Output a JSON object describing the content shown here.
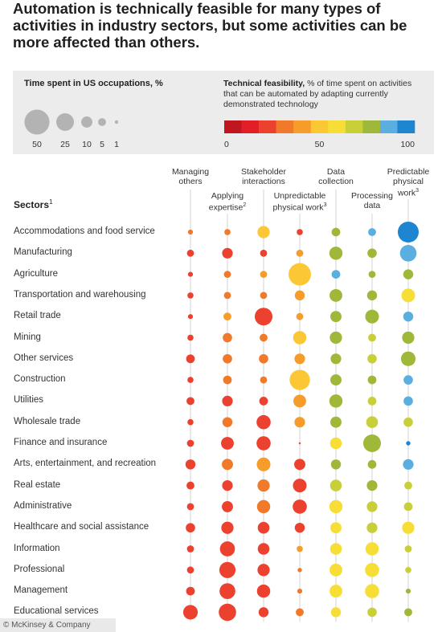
{
  "title": "Automation is technically feasible for many types of activities in industry sectors, but some activities can be more affected than others.",
  "legend": {
    "size_title": "Time spent in US occupations, %",
    "size_values": [
      50,
      25,
      10,
      5,
      1
    ],
    "size_labels": [
      "50",
      "25",
      "10",
      "5",
      "1"
    ],
    "color_title_bold": "Technical feasibility,",
    "color_title_rest": " % of time spent on activities that can be automated by adapting currently demonstrated technology",
    "color_ramp": [
      "#c0161f",
      "#e31e26",
      "#ec412f",
      "#f07a2a",
      "#f59c2a",
      "#fbc734",
      "#f7de37",
      "#c8cf39",
      "#9fb83a",
      "#5aaee0",
      "#1e86d0"
    ],
    "color_ticks": [
      "0",
      "50",
      "100"
    ]
  },
  "sectors_header": "Sectors",
  "sectors_sup": "1",
  "columns": [
    {
      "label_lines": [
        "Managing",
        "others"
      ],
      "sup": ""
    },
    {
      "label_lines": [
        "Applying",
        "expertise"
      ],
      "sup": "2"
    },
    {
      "label_lines": [
        "Stakeholder",
        "interactions"
      ],
      "sup": ""
    },
    {
      "label_lines": [
        "Unpredictable",
        "physical work"
      ],
      "sup": "3"
    },
    {
      "label_lines": [
        "Data",
        "collection"
      ],
      "sup": ""
    },
    {
      "label_lines": [
        "Processing",
        "data"
      ],
      "sup": ""
    },
    {
      "label_lines": [
        "Predictable",
        "physical",
        "work"
      ],
      "sup": "3"
    }
  ],
  "chart_data": {
    "type": "bubble-matrix",
    "title": "Automation is technically feasible for many types of activities in industry sectors, but some activities can be more affected than others.",
    "size_measure": "Time spent in US occupations, %",
    "color_measure": "Technical feasibility, %",
    "rows": [
      "Accommodations and food service",
      "Manufacturing",
      "Agriculture",
      "Transportation and warehousing",
      "Retail trade",
      "Mining",
      "Other services",
      "Construction",
      "Utilities",
      "Wholesale trade",
      "Finance and insurance",
      "Arts, entertainment, and recreation",
      "Real estate",
      "Administrative",
      "Healthcare and social assistance",
      "Information",
      "Professional",
      "Management",
      "Educational services"
    ],
    "columns": [
      "Managing others",
      "Applying expertise",
      "Stakeholder interactions",
      "Unpredictable physical work",
      "Data collection",
      "Processing data",
      "Predictable physical work"
    ],
    "time_spent": [
      [
        2,
        3,
        12,
        3,
        6,
        5,
        35
      ],
      [
        4,
        9,
        4,
        4,
        14,
        7,
        22
      ],
      [
        2,
        4,
        4,
        40,
        6,
        4,
        8
      ],
      [
        3,
        4,
        4,
        8,
        13,
        8,
        15
      ],
      [
        2,
        5,
        25,
        4,
        10,
        15,
        8
      ],
      [
        3,
        7,
        5,
        14,
        12,
        5,
        12
      ],
      [
        6,
        7,
        7,
        9,
        9,
        7,
        17
      ],
      [
        3,
        6,
        4,
        33,
        10,
        6,
        7
      ],
      [
        5,
        9,
        6,
        13,
        14,
        6,
        7
      ],
      [
        3,
        8,
        16,
        9,
        10,
        11,
        7
      ],
      [
        4,
        13,
        16,
        0.3,
        11,
        25,
        1.5
      ],
      [
        8,
        10,
        15,
        10,
        8,
        6,
        9
      ],
      [
        5,
        9,
        12,
        15,
        11,
        9,
        5
      ],
      [
        4,
        10,
        14,
        16,
        14,
        9,
        6
      ],
      [
        7,
        12,
        11,
        8,
        10,
        9,
        12
      ],
      [
        4,
        18,
        11,
        3,
        11,
        14,
        4
      ],
      [
        4,
        21,
        12,
        1.5,
        13,
        16,
        3
      ],
      [
        6,
        20,
        14,
        2,
        13,
        16,
        2
      ],
      [
        17,
        24,
        8,
        5,
        8,
        7,
        5
      ]
    ],
    "feasibility": [
      [
        25,
        30,
        50,
        15,
        75,
        90,
        100
      ],
      [
        20,
        20,
        20,
        35,
        75,
        75,
        85
      ],
      [
        15,
        25,
        35,
        50,
        85,
        75,
        80
      ],
      [
        20,
        25,
        30,
        35,
        75,
        80,
        55
      ],
      [
        18,
        40,
        15,
        35,
        75,
        75,
        85
      ],
      [
        20,
        30,
        30,
        45,
        75,
        70,
        75
      ],
      [
        15,
        30,
        25,
        40,
        75,
        70,
        75
      ],
      [
        20,
        30,
        25,
        45,
        75,
        75,
        85
      ],
      [
        15,
        20,
        20,
        40,
        75,
        70,
        85
      ],
      [
        15,
        25,
        15,
        40,
        75,
        65,
        70
      ],
      [
        15,
        15,
        15,
        20,
        55,
        75,
        100
      ],
      [
        15,
        25,
        35,
        15,
        75,
        75,
        85
      ],
      [
        15,
        20,
        30,
        15,
        65,
        75,
        70
      ],
      [
        15,
        20,
        25,
        15,
        55,
        70,
        65
      ],
      [
        15,
        20,
        15,
        15,
        55,
        65,
        55
      ],
      [
        20,
        15,
        15,
        35,
        55,
        55,
        70
      ],
      [
        20,
        15,
        15,
        30,
        55,
        55,
        70
      ],
      [
        20,
        15,
        15,
        30,
        55,
        55,
        75
      ],
      [
        15,
        15,
        15,
        30,
        55,
        65,
        75
      ]
    ]
  },
  "footer": "© McKinsey & Company"
}
